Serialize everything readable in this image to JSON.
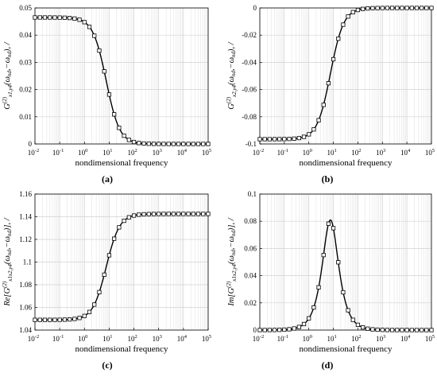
{
  "chart_data": [
    {
      "id": "a",
      "panel_label": "(a)",
      "type": "line",
      "x_scale": "log",
      "xlim": [
        0.01,
        100000
      ],
      "ylim": [
        0,
        0.05
      ],
      "xlabel": "nondimensional frequency",
      "ylabel": "G^(2)_{x1,y4}(ω_nd, −ω_nd), /",
      "ylabel_parts": {
        "main": "G",
        "sup": "(2)",
        "sub": "x1,y4",
        "rest": "(ω",
        "w1sub": "nd",
        "mid": ",−ω",
        "w2sub": "nd",
        "end": "), /"
      },
      "xticks": [
        {
          "exp": "-2"
        },
        {
          "exp": "-1"
        },
        {
          "exp": "0"
        },
        {
          "exp": "1"
        },
        {
          "exp": "2"
        },
        {
          "exp": "3"
        },
        {
          "exp": "4"
        },
        {
          "exp": "5"
        }
      ],
      "xtick_base": "10",
      "yticks": [
        "0",
        "0.01",
        "0.02",
        "0.03",
        "0.04",
        "0.05"
      ],
      "ytick_values": [
        0,
        0.01,
        0.02,
        0.03,
        0.04,
        0.05
      ],
      "grid": true,
      "series": [
        {
          "marker": "square",
          "curve": "sigmoid",
          "low": 0,
          "high": 0.0465,
          "center_log": 0.88,
          "width_log": 0.27,
          "increasing": false
        }
      ]
    },
    {
      "id": "b",
      "panel_label": "(b)",
      "type": "line",
      "x_scale": "log",
      "xlim": [
        0.01,
        100000
      ],
      "ylim": [
        -0.1,
        0
      ],
      "xlabel": "nondimensional frequency",
      "ylabel": "G^(2)_{x2,y4}(ω_nd, −ω_nd), /",
      "ylabel_parts": {
        "main": "G",
        "sup": "(2)",
        "sub": "x2,y4",
        "rest": "(ω",
        "w1sub": "nd",
        "mid": ",−ω",
        "w2sub": "nd",
        "end": "), /"
      },
      "xticks": [
        {
          "exp": "-2"
        },
        {
          "exp": "-1"
        },
        {
          "exp": "0"
        },
        {
          "exp": "1"
        },
        {
          "exp": "2"
        },
        {
          "exp": "3"
        },
        {
          "exp": "4"
        },
        {
          "exp": "5"
        }
      ],
      "xtick_base": "10",
      "yticks": [
        "-0.1",
        "-0.08",
        "-0.06",
        "-0.04",
        "-0.02",
        "0"
      ],
      "ytick_values": [
        -0.1,
        -0.08,
        -0.06,
        -0.04,
        -0.02,
        0
      ],
      "grid": true,
      "series": [
        {
          "marker": "square",
          "curve": "sigmoid",
          "low": -0.0965,
          "high": 0,
          "center_log": 0.88,
          "width_log": 0.27,
          "increasing": true
        }
      ]
    },
    {
      "id": "c",
      "panel_label": "(c)",
      "type": "line",
      "x_scale": "log",
      "xlim": [
        0.01,
        100000
      ],
      "ylim": [
        1.04,
        1.16
      ],
      "xlabel": "nondimensional frequency",
      "ylabel": "Re[G^(2)_{x1x2,y4}(ω_nd, −ω_nd)], /",
      "ylabel_parts": {
        "pre": "Re[",
        "main": "G",
        "sup": "(2)",
        "sub": "x1x2,y4",
        "rest": "(ω",
        "w1sub": "nd",
        "mid": ",−ω",
        "w2sub": "nd",
        "end": ")], /"
      },
      "xticks": [
        {
          "exp": "-2"
        },
        {
          "exp": "-1"
        },
        {
          "exp": "0"
        },
        {
          "exp": "1"
        },
        {
          "exp": "2"
        },
        {
          "exp": "3"
        },
        {
          "exp": "4"
        },
        {
          "exp": "5"
        }
      ],
      "xtick_base": "10",
      "yticks": [
        "1.04",
        "1.06",
        "1.08",
        "1.1",
        "1.12",
        "1.14",
        "1.16"
      ],
      "ytick_values": [
        1.04,
        1.06,
        1.08,
        1.1,
        1.12,
        1.14,
        1.16
      ],
      "grid": true,
      "series": [
        {
          "marker": "square",
          "curve": "sigmoid",
          "low": 1.049,
          "high": 1.1425,
          "center_log": 0.88,
          "width_log": 0.27,
          "increasing": true
        }
      ]
    },
    {
      "id": "d",
      "panel_label": "(d)",
      "type": "line",
      "x_scale": "log",
      "xlim": [
        0.01,
        100000
      ],
      "ylim": [
        0,
        0.1
      ],
      "xlabel": "nondimensional frequency",
      "ylabel": "Im[G^(2)_{x1x2,y4}(ω_nd, −ω_nd)], /",
      "ylabel_parts": {
        "pre": "Im[",
        "main": "G",
        "sup": "(2)",
        "sub": "x1x2,y4",
        "rest": "(ω",
        "w1sub": "nd",
        "mid": ",−ω",
        "w2sub": "nd",
        "end": ")], /"
      },
      "xticks": [
        {
          "exp": "-2"
        },
        {
          "exp": "-1"
        },
        {
          "exp": "0"
        },
        {
          "exp": "1"
        },
        {
          "exp": "2"
        },
        {
          "exp": "3"
        },
        {
          "exp": "4"
        },
        {
          "exp": "5"
        }
      ],
      "xtick_base": "10",
      "yticks": [
        "0",
        "0.02",
        "0.04",
        "0.06",
        "0.08",
        "0.1"
      ],
      "ytick_values": [
        0,
        0.02,
        0.04,
        0.06,
        0.08,
        0.1
      ],
      "grid": true,
      "series": [
        {
          "marker": "square",
          "curve": "peak",
          "low": 0,
          "high": 0.081,
          "center_log": 0.88,
          "width_log": 0.27
        }
      ]
    }
  ]
}
